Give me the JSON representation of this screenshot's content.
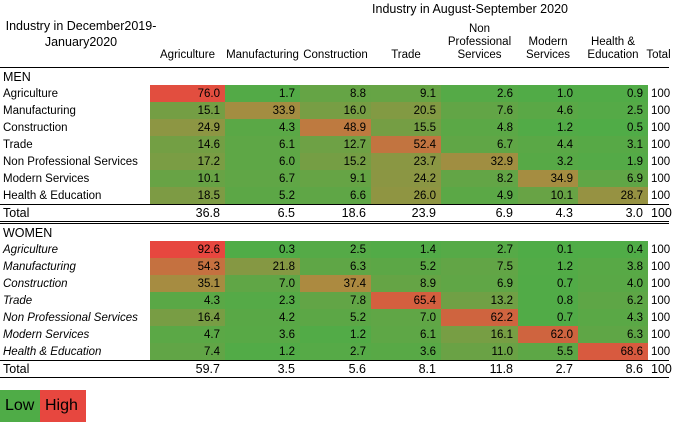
{
  "chart_data": {
    "type": "heatmap",
    "row_header_title": "Industry in December2019-January2020",
    "column_group_title": "Industry in August-September 2020",
    "columns": [
      "Agriculture",
      "Manufacturing",
      "Construction",
      "Trade",
      "Non Professional Services",
      "Modern Services",
      "Health & Education",
      "Total"
    ],
    "column_header_lines": [
      [
        "Agriculture"
      ],
      [
        "Manufacturing"
      ],
      [
        "Construction"
      ],
      [
        "Trade"
      ],
      [
        "Non",
        "Professional",
        "Services"
      ],
      [
        "Modern",
        "Services"
      ],
      [
        "Health &",
        "Education"
      ],
      [
        "Total"
      ]
    ],
    "color_scale": {
      "low_label": "Low",
      "high_label": "High",
      "low_color": "#4fac47",
      "high_color": "#e7473f"
    },
    "panels": [
      {
        "name": "MEN",
        "rows": [
          {
            "label": "Agriculture",
            "values": [
              "76.0",
              "1.7",
              "8.8",
              "9.1",
              "2.6",
              "1.0",
              "0.9"
            ],
            "total": "100"
          },
          {
            "label": "Manufacturing",
            "values": [
              "15.1",
              "33.9",
              "16.0",
              "20.5",
              "7.6",
              "4.6",
              "2.5"
            ],
            "total": "100"
          },
          {
            "label": "Construction",
            "values": [
              "24.9",
              "4.3",
              "48.9",
              "15.5",
              "4.8",
              "1.2",
              "0.5"
            ],
            "total": "100"
          },
          {
            "label": "Trade",
            "values": [
              "14.6",
              "6.1",
              "12.7",
              "52.4",
              "6.7",
              "4.4",
              "3.1"
            ],
            "total": "100"
          },
          {
            "label": "Non Professional Services",
            "values": [
              "17.2",
              "6.0",
              "15.2",
              "23.7",
              "32.9",
              "3.2",
              "1.9"
            ],
            "total": "100"
          },
          {
            "label": "Modern Services",
            "values": [
              "10.1",
              "6.7",
              "9.1",
              "24.2",
              "8.2",
              "34.9",
              "6.9"
            ],
            "total": "100"
          },
          {
            "label": "Health & Education",
            "values": [
              "18.5",
              "5.2",
              "6.6",
              "26.0",
              "4.9",
              "10.1",
              "28.7"
            ],
            "total": "100"
          }
        ],
        "total_row": {
          "label": "Total",
          "values": [
            "36.8",
            "6.5",
            "18.6",
            "23.9",
            "6.9",
            "4.3",
            "3.0"
          ],
          "total": "100"
        }
      },
      {
        "name": "WOMEN",
        "rows": [
          {
            "label": "Agriculture",
            "values": [
              "92.6",
              "0.3",
              "2.5",
              "1.4",
              "2.7",
              "0.1",
              "0.4"
            ],
            "total": "100"
          },
          {
            "label": "Manufacturing",
            "values": [
              "54.3",
              "21.8",
              "6.3",
              "5.2",
              "7.5",
              "1.2",
              "3.8"
            ],
            "total": "100"
          },
          {
            "label": "Construction",
            "values": [
              "35.1",
              "7.0",
              "37.4",
              "8.9",
              "6.9",
              "0.7",
              "4.0"
            ],
            "total": "100"
          },
          {
            "label": "Trade",
            "values": [
              "4.3",
              "2.3",
              "7.8",
              "65.4",
              "13.2",
              "0.8",
              "6.2"
            ],
            "total": "100"
          },
          {
            "label": "Non Professional Services",
            "values": [
              "16.4",
              "4.2",
              "5.2",
              "7.0",
              "62.2",
              "0.7",
              "4.3"
            ],
            "total": "100"
          },
          {
            "label": "Modern Services",
            "values": [
              "4.7",
              "3.6",
              "1.2",
              "6.1",
              "16.1",
              "62.0",
              "6.3"
            ],
            "total": "100"
          },
          {
            "label": "Health & Education",
            "values": [
              "7.4",
              "1.2",
              "2.7",
              "3.6",
              "11.0",
              "5.5",
              "68.6"
            ],
            "total": "100"
          }
        ],
        "total_row": {
          "label": "Total",
          "values": [
            "59.7",
            "3.5",
            "5.6",
            "8.1",
            "11.8",
            "2.7",
            "8.6"
          ],
          "total": "100"
        }
      }
    ]
  }
}
